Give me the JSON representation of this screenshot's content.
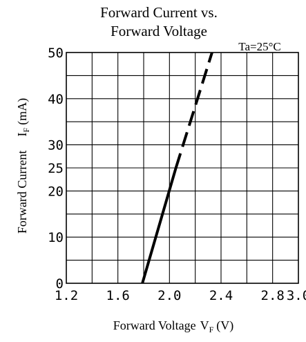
{
  "chart_data": {
    "type": "line",
    "title_line1": "Forward Current vs.",
    "title_line2": "Forward Voltage",
    "annotation": "Ta=25°C",
    "ylabel_prefix": "Forward Current",
    "ylabel_symbol": "I",
    "ylabel_sub": "F",
    "ylabel_unit": "(mA)",
    "xlabel_prefix": "Forward Voltage",
    "xlabel_symbol": "V",
    "xlabel_sub": "F",
    "xlabel_unit": "(V)",
    "xlim": [
      1.2,
      3.0
    ],
    "ylim": [
      0,
      50
    ],
    "x_ticks": [
      1.2,
      1.6,
      2.0,
      2.4,
      2.8,
      3.0
    ],
    "x_tick_labels": [
      "1.2",
      "1.6",
      "2.0",
      "2.4",
      "2.8",
      "3.0"
    ],
    "y_ticks": [
      0,
      10,
      20,
      25,
      30,
      40,
      50
    ],
    "y_tick_labels": [
      "0",
      "10",
      "20",
      "25",
      "30",
      "40",
      "50"
    ],
    "x_gridlines": [
      1.4,
      1.6,
      1.8,
      2.0,
      2.2,
      2.4,
      2.6,
      2.8
    ],
    "y_gridlines": [
      5,
      10,
      15,
      20,
      25,
      30,
      35,
      40,
      45
    ],
    "grid": true,
    "series": [
      {
        "style": "solid",
        "x": [
          1.79,
          2.05
        ],
        "y": [
          0,
          25
        ]
      },
      {
        "style": "dashed",
        "x": [
          2.05,
          2.33
        ],
        "y": [
          25,
          50
        ]
      }
    ]
  }
}
